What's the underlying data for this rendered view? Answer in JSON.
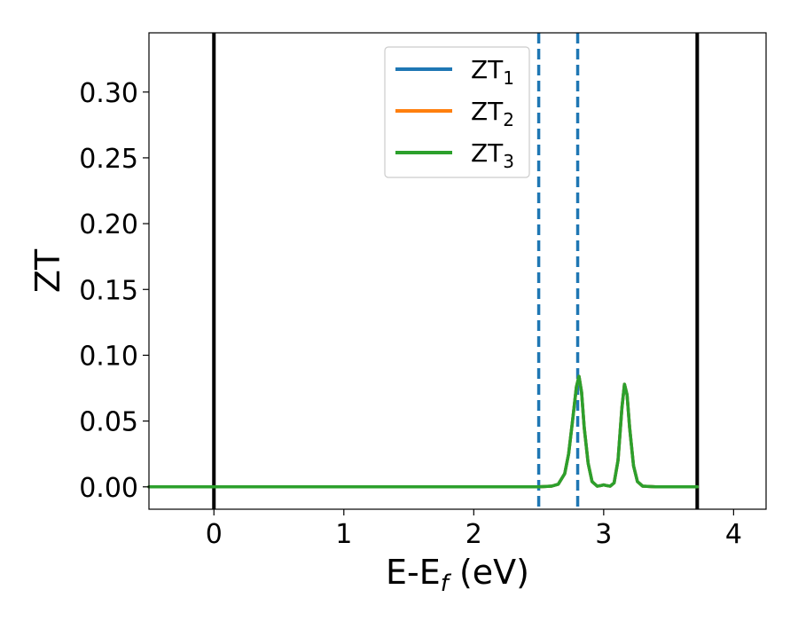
{
  "chart_data": {
    "type": "line",
    "title": "",
    "xlabel": "E-E",
    "xlabel_subscript": "f",
    "xlabel_unit": " (eV)",
    "ylabel": "ZT",
    "xlim": [
      -0.5,
      4.25
    ],
    "ylim": [
      -0.017,
      0.345
    ],
    "x_ticks": [
      0,
      1,
      2,
      3,
      4
    ],
    "y_ticks": [
      0.0,
      0.05,
      0.1,
      0.15,
      0.2,
      0.25,
      0.3
    ],
    "y_tick_labels": [
      "0.00",
      "0.05",
      "0.10",
      "0.15",
      "0.20",
      "0.25",
      "0.30"
    ],
    "legend_position": "top-center",
    "grid": false,
    "vertical_lines": [
      {
        "x": 0.0,
        "style": "solid",
        "color": "#000000"
      },
      {
        "x": 3.72,
        "style": "solid",
        "color": "#000000"
      },
      {
        "x": 2.5,
        "style": "dashed",
        "color": "#1f77b4"
      },
      {
        "x": 2.8,
        "style": "dashed",
        "color": "#1f77b4"
      }
    ],
    "series": [
      {
        "name": "ZT",
        "subscript": "1",
        "color": "#1f77b4",
        "x": [
          -0.5,
          0,
          1,
          2,
          2.5,
          2.6,
          2.65,
          2.7,
          2.73,
          2.76,
          2.79,
          2.81,
          2.83,
          2.85,
          2.88,
          2.91,
          2.95,
          2.98,
          3.0,
          3.02,
          3.05,
          3.08,
          3.11,
          3.14,
          3.16,
          3.18,
          3.2,
          3.23,
          3.26,
          3.3,
          3.4,
          3.72
        ],
        "y": [
          0,
          0,
          0,
          0,
          0,
          0.0005,
          0.002,
          0.01,
          0.025,
          0.05,
          0.076,
          0.084,
          0.072,
          0.045,
          0.018,
          0.004,
          0.0005,
          0.001,
          0.0015,
          0.001,
          0.0005,
          0.003,
          0.02,
          0.06,
          0.078,
          0.07,
          0.045,
          0.016,
          0.004,
          0.0005,
          0,
          0
        ]
      },
      {
        "name": "ZT",
        "subscript": "2",
        "color": "#ff7f0e",
        "x": [
          -0.5,
          0,
          1,
          2,
          2.5,
          2.6,
          2.65,
          2.7,
          2.73,
          2.76,
          2.79,
          2.81,
          2.83,
          2.85,
          2.88,
          2.91,
          2.95,
          2.98,
          3.0,
          3.02,
          3.05,
          3.08,
          3.11,
          3.14,
          3.16,
          3.18,
          3.2,
          3.23,
          3.26,
          3.3,
          3.4,
          3.72
        ],
        "y": [
          0,
          0,
          0,
          0,
          0,
          0.0005,
          0.002,
          0.01,
          0.025,
          0.05,
          0.076,
          0.084,
          0.072,
          0.045,
          0.018,
          0.004,
          0.0005,
          0.001,
          0.0015,
          0.001,
          0.0005,
          0.003,
          0.02,
          0.06,
          0.078,
          0.07,
          0.045,
          0.016,
          0.004,
          0.0005,
          0,
          0
        ]
      },
      {
        "name": "ZT",
        "subscript": "3",
        "color": "#2ca02c",
        "x": [
          -0.5,
          0,
          1,
          2,
          2.5,
          2.6,
          2.65,
          2.7,
          2.73,
          2.76,
          2.79,
          2.81,
          2.83,
          2.85,
          2.88,
          2.91,
          2.95,
          2.98,
          3.0,
          3.02,
          3.05,
          3.08,
          3.11,
          3.14,
          3.16,
          3.18,
          3.2,
          3.23,
          3.26,
          3.3,
          3.4,
          3.72
        ],
        "y": [
          0,
          0,
          0,
          0,
          0,
          0.0005,
          0.002,
          0.01,
          0.025,
          0.05,
          0.076,
          0.084,
          0.072,
          0.045,
          0.018,
          0.004,
          0.0005,
          0.001,
          0.0015,
          0.001,
          0.0005,
          0.003,
          0.02,
          0.06,
          0.078,
          0.07,
          0.045,
          0.016,
          0.004,
          0.0005,
          0,
          0
        ]
      }
    ]
  }
}
